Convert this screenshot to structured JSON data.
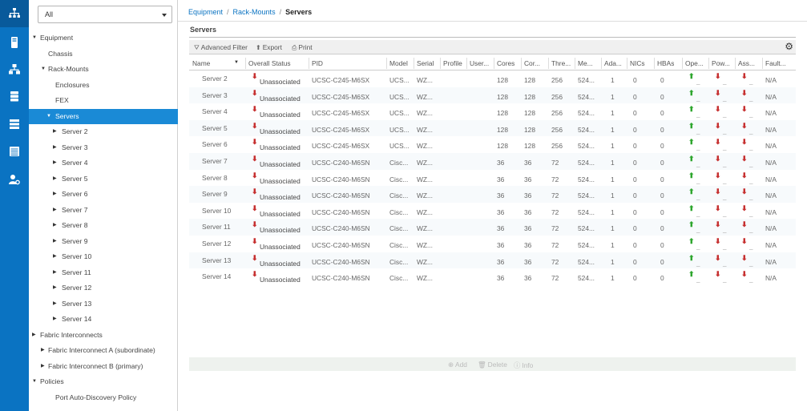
{
  "rail": {
    "icons": [
      "network-icon",
      "server-icon",
      "topology-icon",
      "storage-icon",
      "list-icon",
      "table-icon",
      "admin-icon"
    ]
  },
  "tree_filter": {
    "value": "All"
  },
  "tree": [
    {
      "label": "Equipment",
      "level": 0,
      "toggle": "▼"
    },
    {
      "label": "Chassis",
      "level": 1,
      "toggle": ""
    },
    {
      "label": "Rack-Mounts",
      "level": 1,
      "toggle": "▼"
    },
    {
      "label": "Enclosures",
      "level": 2,
      "toggle": ""
    },
    {
      "label": "FEX",
      "level": 2,
      "toggle": ""
    },
    {
      "label": "Servers",
      "level": 2,
      "toggle": "▼",
      "selected": true
    },
    {
      "label": "Server 2",
      "level": 3,
      "toggle": "▶"
    },
    {
      "label": "Server 3",
      "level": 3,
      "toggle": "▶"
    },
    {
      "label": "Server 4",
      "level": 3,
      "toggle": "▶"
    },
    {
      "label": "Server 5",
      "level": 3,
      "toggle": "▶"
    },
    {
      "label": "Server 6",
      "level": 3,
      "toggle": "▶"
    },
    {
      "label": "Server 7",
      "level": 3,
      "toggle": "▶"
    },
    {
      "label": "Server 8",
      "level": 3,
      "toggle": "▶"
    },
    {
      "label": "Server 9",
      "level": 3,
      "toggle": "▶"
    },
    {
      "label": "Server 10",
      "level": 3,
      "toggle": "▶"
    },
    {
      "label": "Server 11",
      "level": 3,
      "toggle": "▶"
    },
    {
      "label": "Server 12",
      "level": 3,
      "toggle": "▶"
    },
    {
      "label": "Server 13",
      "level": 3,
      "toggle": "▶"
    },
    {
      "label": "Server 14",
      "level": 3,
      "toggle": "▶"
    },
    {
      "label": "Fabric Interconnects",
      "level": 0,
      "toggle": "▶"
    },
    {
      "label": "Fabric Interconnect A (subordinate)",
      "level": 1,
      "toggle": "▶"
    },
    {
      "label": "Fabric Interconnect B (primary)",
      "level": 1,
      "toggle": "▶"
    },
    {
      "label": "Policies",
      "level": 0,
      "toggle": "▼"
    },
    {
      "label": "Port Auto-Discovery Policy",
      "level": 2,
      "toggle": ""
    }
  ],
  "breadcrumb": {
    "items": [
      "Equipment",
      "Rack-Mounts"
    ],
    "separator": "/",
    "current": "Servers"
  },
  "section_title": "Servers",
  "toolbar": {
    "advanced_filter": "Advanced Filter",
    "export": "Export",
    "print": "Print"
  },
  "columns": [
    "Name",
    "Overall Status",
    "PID",
    "Model",
    "Serial",
    "Profile",
    "User...",
    "Cores",
    "Cor...",
    "Thre...",
    "Me...",
    "Ada...",
    "NICs",
    "HBAs",
    "Ope...",
    "Pow...",
    "Ass...",
    "Fault..."
  ],
  "rows": [
    {
      "name": "Server 2",
      "status": "Unassociated",
      "pid": "UCSC-C245-M6SX",
      "model": "UCS...",
      "serial": "WZ...",
      "cores": "128",
      "cores_enabled": "128",
      "threads": "256",
      "memory": "524...",
      "adapters": "1",
      "nics": "0",
      "hbas": "0",
      "fault": "N/A"
    },
    {
      "name": "Server 3",
      "status": "Unassociated",
      "pid": "UCSC-C245-M6SX",
      "model": "UCS...",
      "serial": "WZ...",
      "cores": "128",
      "cores_enabled": "128",
      "threads": "256",
      "memory": "524...",
      "adapters": "1",
      "nics": "0",
      "hbas": "0",
      "fault": "N/A"
    },
    {
      "name": "Server 4",
      "status": "Unassociated",
      "pid": "UCSC-C245-M6SX",
      "model": "UCS...",
      "serial": "WZ...",
      "cores": "128",
      "cores_enabled": "128",
      "threads": "256",
      "memory": "524...",
      "adapters": "1",
      "nics": "0",
      "hbas": "0",
      "fault": "N/A"
    },
    {
      "name": "Server 5",
      "status": "Unassociated",
      "pid": "UCSC-C245-M6SX",
      "model": "UCS...",
      "serial": "WZ...",
      "cores": "128",
      "cores_enabled": "128",
      "threads": "256",
      "memory": "524...",
      "adapters": "1",
      "nics": "0",
      "hbas": "0",
      "fault": "N/A"
    },
    {
      "name": "Server 6",
      "status": "Unassociated",
      "pid": "UCSC-C245-M6SX",
      "model": "UCS...",
      "serial": "WZ...",
      "cores": "128",
      "cores_enabled": "128",
      "threads": "256",
      "memory": "524...",
      "adapters": "1",
      "nics": "0",
      "hbas": "0",
      "fault": "N/A"
    },
    {
      "name": "Server 7",
      "status": "Unassociated",
      "pid": "UCSC-C240-M6SN",
      "model": "Cisc...",
      "serial": "WZ...",
      "cores": "36",
      "cores_enabled": "36",
      "threads": "72",
      "memory": "524...",
      "adapters": "1",
      "nics": "0",
      "hbas": "0",
      "fault": "N/A"
    },
    {
      "name": "Server 8",
      "status": "Unassociated",
      "pid": "UCSC-C240-M6SN",
      "model": "Cisc...",
      "serial": "WZ...",
      "cores": "36",
      "cores_enabled": "36",
      "threads": "72",
      "memory": "524...",
      "adapters": "1",
      "nics": "0",
      "hbas": "0",
      "fault": "N/A"
    },
    {
      "name": "Server 9",
      "status": "Unassociated",
      "pid": "UCSC-C240-M6SN",
      "model": "Cisc...",
      "serial": "WZ...",
      "cores": "36",
      "cores_enabled": "36",
      "threads": "72",
      "memory": "524...",
      "adapters": "1",
      "nics": "0",
      "hbas": "0",
      "fault": "N/A"
    },
    {
      "name": "Server 10",
      "status": "Unassociated",
      "pid": "UCSC-C240-M6SN",
      "model": "Cisc...",
      "serial": "WZ...",
      "cores": "36",
      "cores_enabled": "36",
      "threads": "72",
      "memory": "524...",
      "adapters": "1",
      "nics": "0",
      "hbas": "0",
      "fault": "N/A"
    },
    {
      "name": "Server 11",
      "status": "Unassociated",
      "pid": "UCSC-C240-M6SN",
      "model": "Cisc...",
      "serial": "WZ...",
      "cores": "36",
      "cores_enabled": "36",
      "threads": "72",
      "memory": "524...",
      "adapters": "1",
      "nics": "0",
      "hbas": "0",
      "fault": "N/A"
    },
    {
      "name": "Server 12",
      "status": "Unassociated",
      "pid": "UCSC-C240-M6SN",
      "model": "Cisc...",
      "serial": "WZ...",
      "cores": "36",
      "cores_enabled": "36",
      "threads": "72",
      "memory": "524...",
      "adapters": "1",
      "nics": "0",
      "hbas": "0",
      "fault": "N/A"
    },
    {
      "name": "Server 13",
      "status": "Unassociated",
      "pid": "UCSC-C240-M6SN",
      "model": "Cisc...",
      "serial": "WZ...",
      "cores": "36",
      "cores_enabled": "36",
      "threads": "72",
      "memory": "524...",
      "adapters": "1",
      "nics": "0",
      "hbas": "0",
      "fault": "N/A"
    },
    {
      "name": "Server 14",
      "status": "Unassociated",
      "pid": "UCSC-C240-M6SN",
      "model": "Cisc...",
      "serial": "WZ...",
      "cores": "36",
      "cores_enabled": "36",
      "threads": "72",
      "memory": "524...",
      "adapters": "1",
      "nics": "0",
      "hbas": "0",
      "fault": "N/A"
    }
  ],
  "action_bar": {
    "add": "Add",
    "delete": "Delete",
    "info": "Info"
  },
  "colors": {
    "rail": "#0a73c2",
    "selected": "#1a8ad6",
    "status_down": "#c62f2f",
    "status_up": "#2ea62e"
  }
}
